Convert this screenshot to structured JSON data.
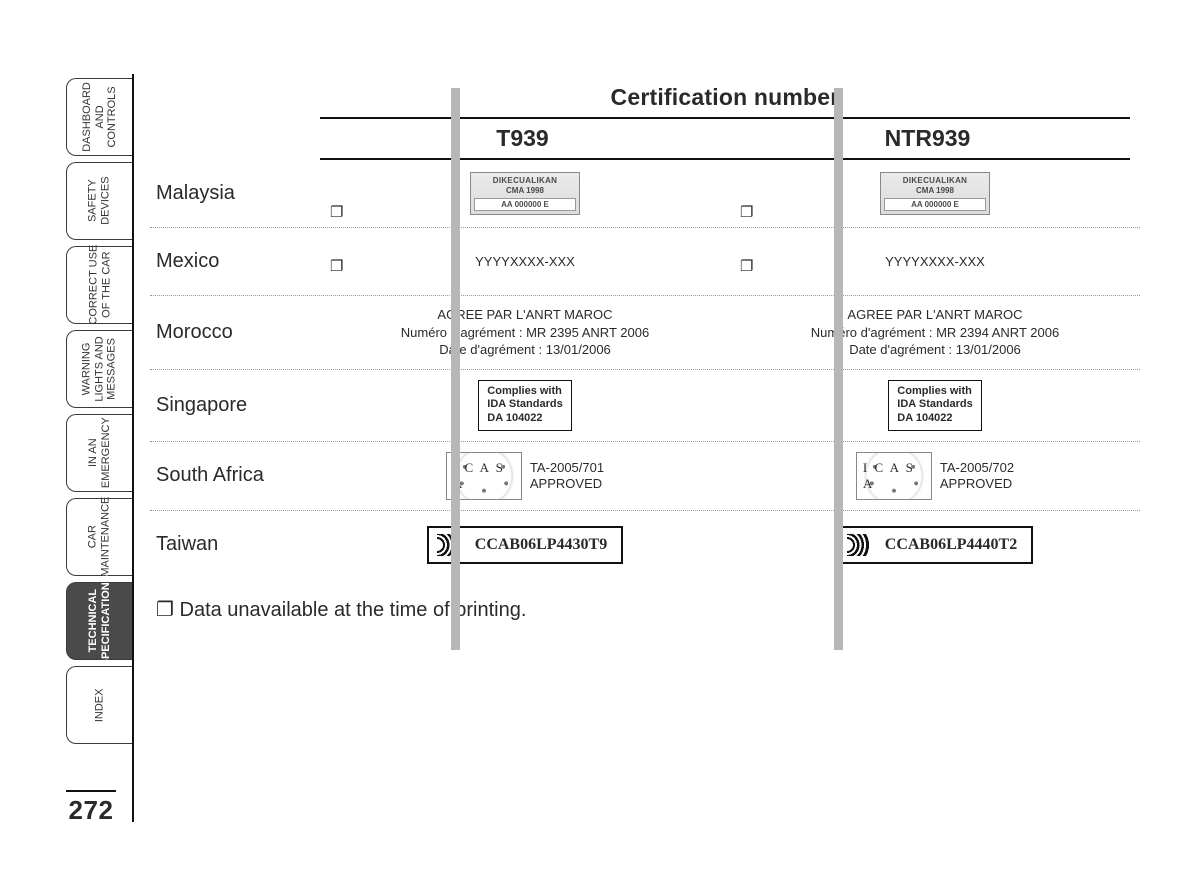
{
  "sidebar": {
    "items": [
      {
        "label": "DASHBOARD\nAND\nCONTROLS",
        "active": false
      },
      {
        "label": "SAFETY\nDEVICES",
        "active": false
      },
      {
        "label": "CORRECT USE\nOF THE CAR",
        "active": false
      },
      {
        "label": "WARNING\nLIGHTS AND\nMESSAGES",
        "active": false
      },
      {
        "label": "IN AN\nEMERGENCY",
        "active": false
      },
      {
        "label": "CAR\nMAINTENANCE",
        "active": false
      },
      {
        "label": "TECHNICAL\nSPECIFICATIONS",
        "active": true
      },
      {
        "label": "INDEX",
        "active": false
      }
    ]
  },
  "table": {
    "title": "Certification number",
    "columns": [
      "T939",
      "NTR939"
    ],
    "rows": [
      {
        "country": "Malaysia",
        "cells": [
          {
            "type": "cma",
            "top": "DIKECUALIKAN",
            "mid": "CMA 1998",
            "bot": "AA 000000 E",
            "flag": "❐"
          },
          {
            "type": "cma",
            "top": "DIKECUALIKAN",
            "mid": "CMA 1998",
            "bot": "AA 000000 E",
            "flag": "❐"
          }
        ]
      },
      {
        "country": "Mexico",
        "cells": [
          {
            "type": "text",
            "value": "YYYYXXXX-XXX",
            "flag": "❐"
          },
          {
            "type": "text",
            "value": "YYYYXXXX-XXX",
            "flag": "❐"
          }
        ]
      },
      {
        "country": "Morocco",
        "cells": [
          {
            "type": "morocco",
            "line1": "AGREE PAR L'ANRT MAROC",
            "line2": "Numéro d'agrément : MR 2395 ANRT 2006",
            "line3": "Date d'agrément : 13/01/2006"
          },
          {
            "type": "morocco",
            "line1": "AGREE PAR L'ANRT MAROC",
            "line2": "Numéro d'agrément : MR 2394 ANRT 2006",
            "line3": "Date d'agrément : 13/01/2006"
          }
        ]
      },
      {
        "country": "Singapore",
        "cells": [
          {
            "type": "ida",
            "line1": "Complies with",
            "line2": "IDA  Standards",
            "line3": "DA 104022"
          },
          {
            "type": "ida",
            "line1": "Complies with",
            "line2": "IDA  Standards",
            "line3": "DA 104022"
          }
        ]
      },
      {
        "country": "South Africa",
        "cells": [
          {
            "type": "icasa",
            "logo": "I C A S A",
            "code": "TA-2005/701",
            "status": "APPROVED"
          },
          {
            "type": "icasa",
            "logo": "I C A S A",
            "code": "TA-2005/702",
            "status": "APPROVED"
          }
        ]
      },
      {
        "country": "Taiwan",
        "cells": [
          {
            "type": "taiwan",
            "code": "CCAB06LP4430T9"
          },
          {
            "type": "taiwan",
            "code": "CCAB06LP4440T2"
          }
        ]
      }
    ]
  },
  "footnote_marker": "❐",
  "footnote": "Data unavailable at the time of printing.",
  "page_number": "272",
  "colors": {
    "divider": "#b7b7b7",
    "border": "#111111",
    "tab_active_bg": "#4a4a4a"
  }
}
